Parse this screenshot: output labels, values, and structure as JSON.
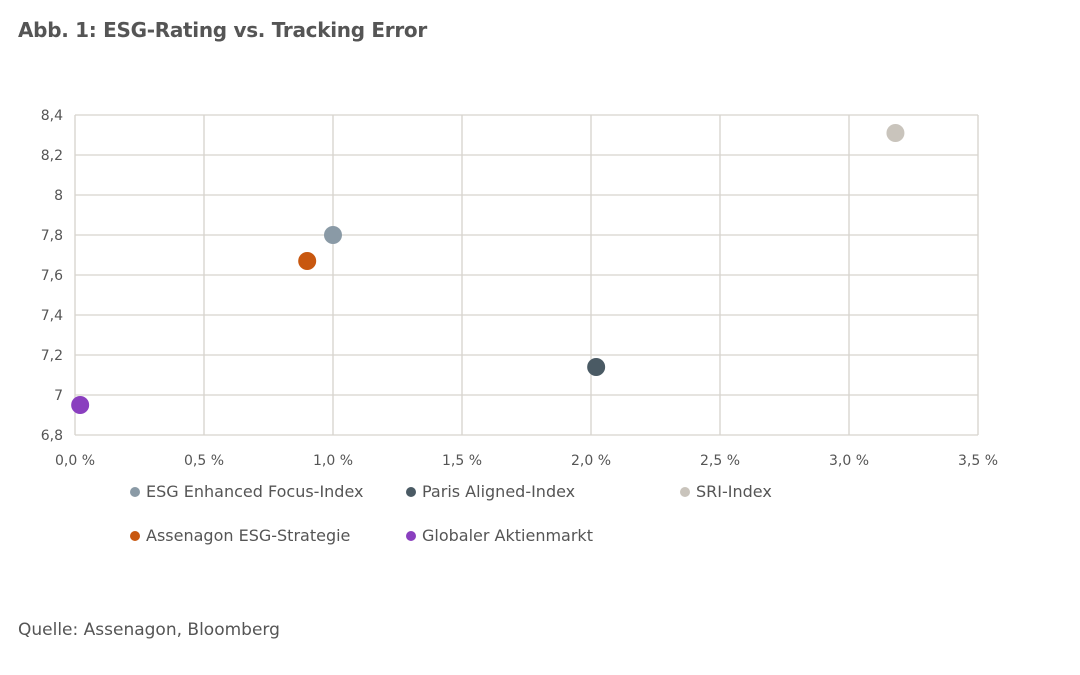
{
  "title": "Abb. 1: ESG-Rating vs. Tracking Error",
  "source": "Quelle: Assenagon, Bloomberg",
  "chart_data": {
    "type": "scatter",
    "title": "Abb. 1: ESG-Rating vs. Tracking Error",
    "xlabel": "",
    "ylabel": "",
    "xlim": [
      0,
      3.5
    ],
    "ylim": [
      6.8,
      8.4
    ],
    "x_ticks": [
      0,
      0.5,
      1.0,
      1.5,
      2.0,
      2.5,
      3.0,
      3.5
    ],
    "x_tick_labels": [
      "0,0 %",
      "0,5 %",
      "1,0 %",
      "1,5 %",
      "2,0 %",
      "2,5 %",
      "3,0 %",
      "3,5 %"
    ],
    "y_ticks": [
      6.8,
      7.0,
      7.2,
      7.4,
      7.6,
      7.8,
      8.0,
      8.2,
      8.4
    ],
    "y_tick_labels": [
      "6,8",
      "7",
      "7,2",
      "7,4",
      "7,6",
      "7,8",
      "8",
      "8,2",
      "8,4"
    ],
    "grid": true,
    "legend_position": "bottom",
    "series": [
      {
        "name": "ESG Enhanced Focus-Index",
        "color": "#8a9aa6",
        "x": [
          1.0
        ],
        "y": [
          7.8
        ]
      },
      {
        "name": "Paris Aligned-Index",
        "color": "#4a5a64",
        "x": [
          2.02
        ],
        "y": [
          7.14
        ]
      },
      {
        "name": "SRI-Index",
        "color": "#c9c4bc",
        "x": [
          3.18
        ],
        "y": [
          8.31
        ]
      },
      {
        "name": "Assenagon ESG-Strategie",
        "color": "#c8570f",
        "x": [
          0.9
        ],
        "y": [
          7.67
        ]
      },
      {
        "name": "Globaler Aktienmarkt",
        "color": "#8a3fbf",
        "x": [
          0.02
        ],
        "y": [
          6.95
        ]
      }
    ]
  }
}
